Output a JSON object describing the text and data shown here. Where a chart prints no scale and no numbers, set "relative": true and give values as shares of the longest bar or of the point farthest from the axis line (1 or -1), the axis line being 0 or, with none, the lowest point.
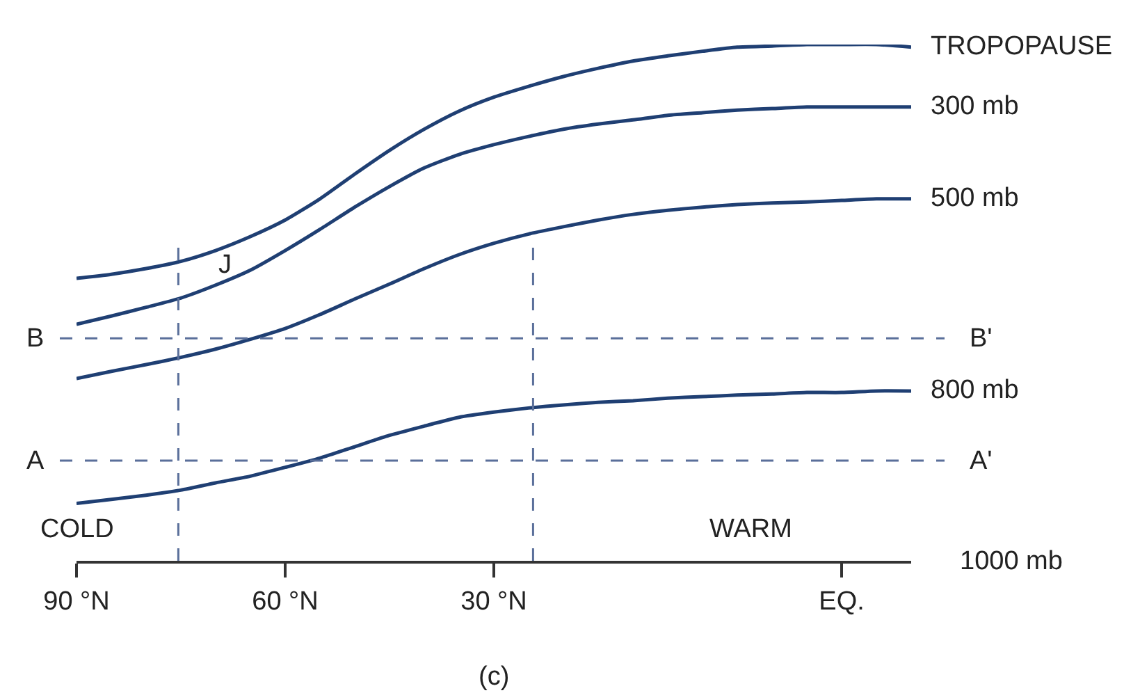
{
  "chart_data": {
    "type": "line",
    "relative": true,
    "categories": [
      "90 °N",
      null,
      null,
      null,
      null,
      null,
      "60 °N",
      null,
      null,
      null,
      null,
      null,
      "30 °N",
      null,
      null,
      null,
      null,
      null,
      null,
      null,
      null,
      null,
      "EQ.",
      null,
      null
    ],
    "series": [
      {
        "name": "TROPOPAUSE",
        "color": "#1f3f73",
        "values": [
          0.547,
          0.555,
          0.566,
          0.58,
          0.601,
          0.628,
          0.66,
          0.701,
          0.749,
          0.795,
          0.836,
          0.871,
          0.898,
          0.919,
          0.938,
          0.954,
          0.968,
          0.978,
          0.987,
          0.995,
          0.997,
          1.0,
          1.0,
          1.0,
          0.995
        ]
      },
      {
        "name": "300 mb",
        "color": "#1f3f73",
        "values": [
          0.458,
          0.474,
          0.491,
          0.509,
          0.534,
          0.563,
          0.601,
          0.642,
          0.685,
          0.725,
          0.761,
          0.787,
          0.806,
          0.822,
          0.836,
          0.846,
          0.854,
          0.863,
          0.868,
          0.873,
          0.876,
          0.879,
          0.879,
          0.879,
          0.879
        ]
      },
      {
        "name": "500 mb",
        "color": "#1f3f73",
        "values": [
          0.353,
          0.367,
          0.38,
          0.394,
          0.41,
          0.429,
          0.45,
          0.477,
          0.507,
          0.536,
          0.566,
          0.593,
          0.615,
          0.633,
          0.647,
          0.66,
          0.671,
          0.679,
          0.685,
          0.69,
          0.693,
          0.695,
          0.698,
          0.701,
          0.701
        ]
      },
      {
        "name": "800 mb",
        "color": "#1f3f73",
        "values": [
          0.111,
          0.119,
          0.127,
          0.137,
          0.151,
          0.164,
          0.181,
          0.199,
          0.221,
          0.243,
          0.261,
          0.278,
          0.288,
          0.296,
          0.302,
          0.307,
          0.31,
          0.315,
          0.318,
          0.321,
          0.323,
          0.326,
          0.326,
          0.329,
          0.329
        ]
      }
    ],
    "ref_lines": [
      {
        "axis": "y",
        "value": 0.431,
        "color": "#5a6f9a",
        "line_style": "dashed"
      },
      {
        "axis": "y",
        "value": 0.194,
        "color": "#5a6f9a",
        "line_style": "dashed"
      }
    ],
    "annotations": [
      "B",
      "B'",
      "A",
      "A'",
      "J",
      "COLD",
      "WARM",
      "1000 mb",
      "(c)"
    ],
    "legend": false,
    "marker": "none",
    "line_style": "solid"
  }
}
